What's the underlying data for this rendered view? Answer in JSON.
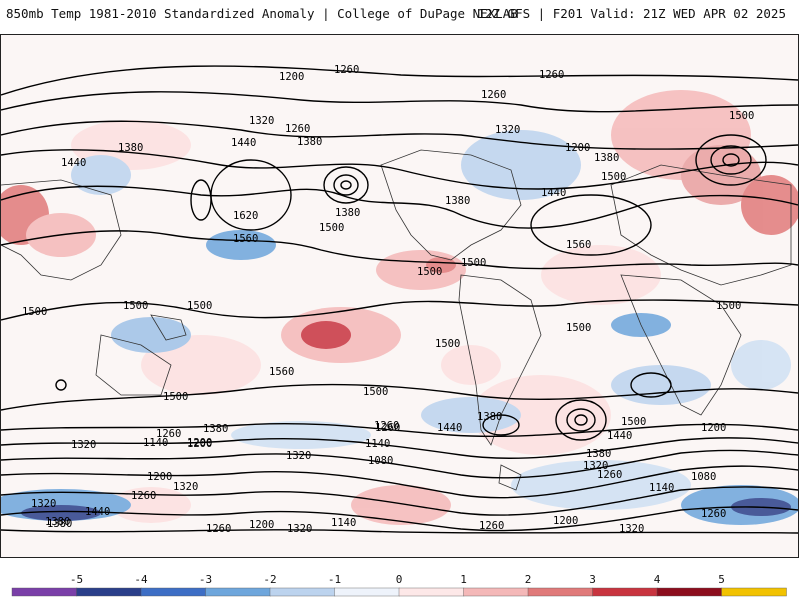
{
  "header": {
    "title": "850mb Temp 1981-2010 Standardized Anomaly | College of DuPage NEXLAB",
    "run_info": "12Z GFS | F201 Valid: 21Z WED APR 02 2025"
  },
  "colorbar": {
    "ticks": [
      "-5",
      "-4",
      "-3",
      "-2",
      "-1",
      "0",
      "1",
      "2",
      "3",
      "4",
      "5"
    ],
    "colors": [
      "#7a3fa8",
      "#2a3f8a",
      "#3d6ec5",
      "#6ea6dc",
      "#bcd3ee",
      "#eef3fb",
      "#fde8e8",
      "#f4b8b8",
      "#e07a7a",
      "#c8343f",
      "#8c0d1d",
      "#f2c200"
    ]
  },
  "map": {
    "isohypse_labels": [
      "1200",
      "1260",
      "1260",
      "1260",
      "1320",
      "1260",
      "1380",
      "1440",
      "1380",
      "1320",
      "1500",
      "1620",
      "1560",
      "1500",
      "1380",
      "1440",
      "1380",
      "1200",
      "1380",
      "1440",
      "1500",
      "1560",
      "1500",
      "1500",
      "1500",
      "1500",
      "1500",
      "1500",
      "1500",
      "1500",
      "1560",
      "1500",
      "1500",
      "1440",
      "1380",
      "1260",
      "1140",
      "1080",
      "1200",
      "1320",
      "1140",
      "1260",
      "1200",
      "1380",
      "1320",
      "1260",
      "1200",
      "1320",
      "1260",
      "1200",
      "1140",
      "1260",
      "1320",
      "1380",
      "1320",
      "1500",
      "1440",
      "1380",
      "1320",
      "1260",
      "1200",
      "1080",
      "1140",
      "1260",
      "1200",
      "1320",
      "1260",
      "1440",
      "1380"
    ]
  }
}
